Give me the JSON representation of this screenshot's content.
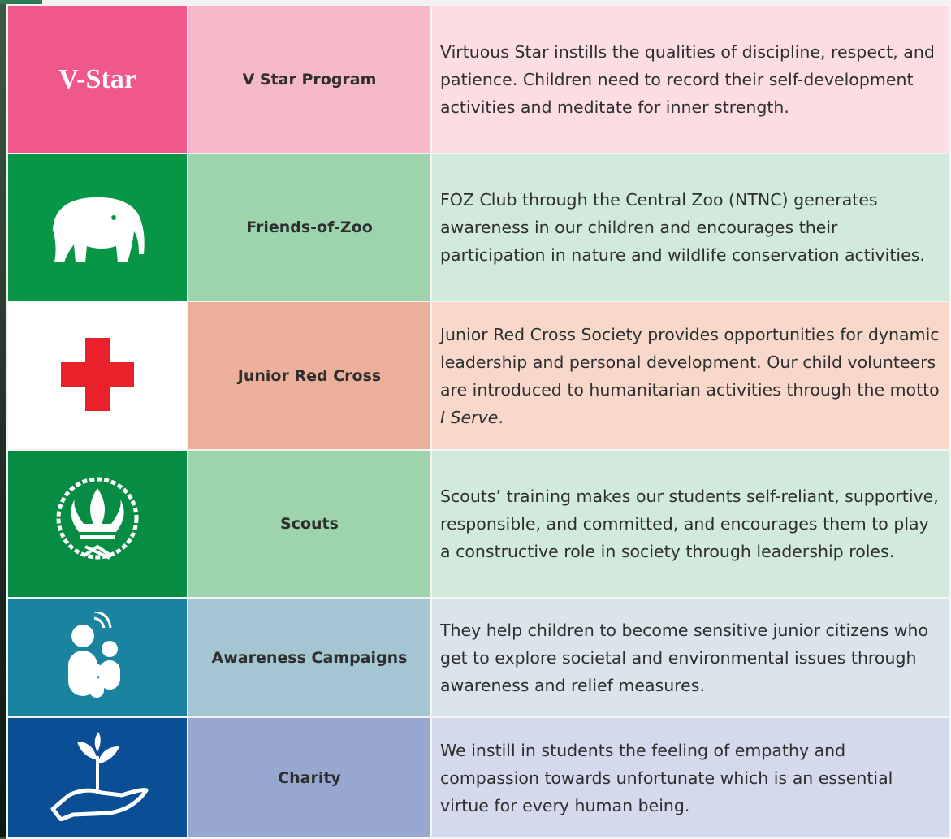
{
  "rows": [
    {
      "icon_text": "V-Star",
      "program": "V Star Program",
      "description": "Virtuous Star instills the qualities of discipline, respect, and patience. Children need to record their self-development activities and meditate for inner strength."
    },
    {
      "program": "Friends-of-Zoo",
      "description": "FOZ Club through the Central Zoo (NTNC) generates awareness in our children and encourages their participation in nature and wildlife conservation activities."
    },
    {
      "program": "Junior Red Cross",
      "description": "Junior Red Cross Society provides opportunities for dynamic leadership and personal development. Our child volunteers are introduced to humanitarian activities through the motto ",
      "description_italic": "I Serve",
      "description_end": "."
    },
    {
      "program": "Scouts",
      "description": "Scouts’ training makes our students self-reliant, supportive, responsible, and committed, and encourages them to play a constructive role in society through leadership roles."
    },
    {
      "program": "Awareness Campaigns",
      "description": "They help children to become sensitive junior citizens who get to explore societal and environmental issues through awareness and relief measures."
    },
    {
      "program": "Charity",
      "description": "We instill in students the feeling of empathy and compassion towards unfortunate which is an essential virtue for every human being."
    }
  ]
}
